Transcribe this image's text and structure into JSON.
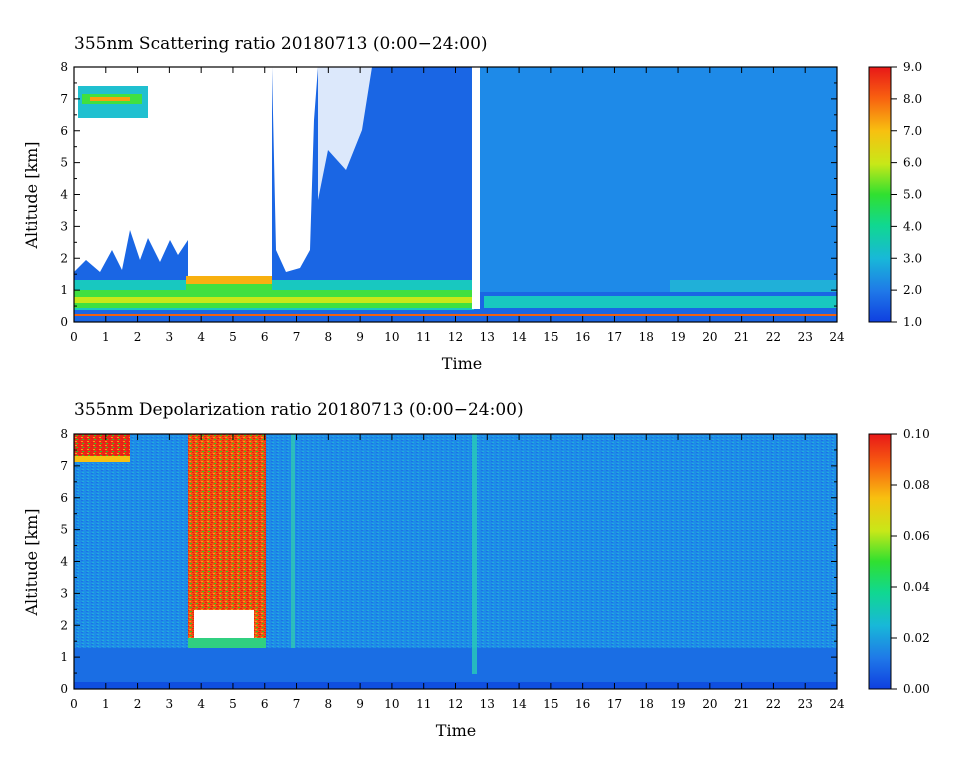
{
  "chart_data": [
    {
      "type": "heatmap",
      "title": "355nm Scattering ratio  20180713 (0:00−24:00)",
      "xlabel": "Time",
      "ylabel": "Altitude [km]",
      "xlim": [
        0,
        24
      ],
      "ylim": [
        0,
        8
      ],
      "x_ticks": [
        "0",
        "1",
        "2",
        "3",
        "4",
        "5",
        "6",
        "7",
        "8",
        "9",
        "10",
        "11",
        "12",
        "13",
        "14",
        "15",
        "16",
        "17",
        "18",
        "19",
        "20",
        "21",
        "22",
        "23",
        "24"
      ],
      "y_ticks": [
        "0",
        "1",
        "2",
        "3",
        "4",
        "5",
        "6",
        "7",
        "8"
      ],
      "colorbar": {
        "min": 1.0,
        "max": 9.0,
        "ticks": [
          "1.0",
          "2.0",
          "3.0",
          "4.0",
          "5.0",
          "6.0",
          "7.0",
          "8.0",
          "9.0"
        ]
      },
      "grid": false,
      "features": [
        {
          "description": "no data / saturated (white)",
          "x": [
            3.6,
            6.1
          ],
          "y": [
            1.45,
            8.0
          ]
        },
        {
          "description": "no data (white)",
          "x": [
            12.5,
            12.7
          ],
          "y": [
            0.35,
            8.0
          ]
        },
        {
          "description": "boundary layer aerosol, ratio ~3.5-4.5",
          "x": [
            0,
            12.4
          ],
          "y": [
            0.4,
            1.3
          ]
        },
        {
          "description": "cloud layer, ratio >6",
          "x": [
            0.3,
            1.6
          ],
          "y": [
            6.5,
            7.3
          ]
        },
        {
          "description": "cloud base, ratio >6",
          "x": [
            3.6,
            6.1
          ],
          "y": [
            1.3,
            1.45
          ]
        }
      ]
    },
    {
      "type": "heatmap",
      "title": "355nm Depolarization ratio  20180713 (0:00−24:00)",
      "xlabel": "Time",
      "ylabel": "Altitude [km]",
      "xlim": [
        0,
        24
      ],
      "ylim": [
        0,
        8
      ],
      "x_ticks": [
        "0",
        "1",
        "2",
        "3",
        "4",
        "5",
        "6",
        "7",
        "8",
        "9",
        "10",
        "11",
        "12",
        "13",
        "14",
        "15",
        "16",
        "17",
        "18",
        "19",
        "20",
        "21",
        "22",
        "23",
        "24"
      ],
      "y_ticks": [
        "0",
        "1",
        "2",
        "3",
        "4",
        "5",
        "6",
        "7",
        "8"
      ],
      "colorbar": {
        "min": 0.0,
        "max": 0.1,
        "ticks": [
          "0.00",
          "0.02",
          "0.04",
          "0.06",
          "0.08",
          "0.10"
        ]
      },
      "grid": false,
      "features": [
        {
          "description": "high depolarization cloud, ratio ~0.1",
          "x": [
            3.6,
            6.0
          ],
          "y": [
            1.3,
            8.0
          ]
        },
        {
          "description": "high depolarization layer",
          "x": [
            0,
            1.6
          ],
          "y": [
            7.2,
            8.0
          ]
        },
        {
          "description": "background noise, ratio ~0.01-0.03",
          "x": [
            0,
            24
          ],
          "y": [
            0,
            8
          ]
        }
      ]
    }
  ]
}
